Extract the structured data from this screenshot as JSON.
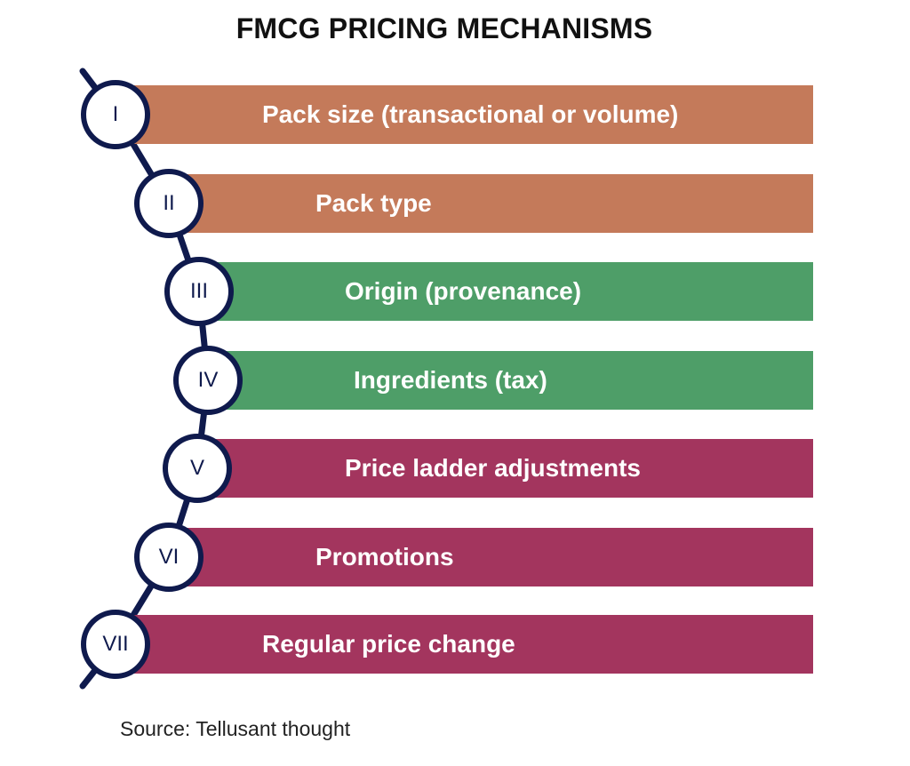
{
  "title": "FMCG PRICING MECHANISMS",
  "source": "Source: Tellusant thought",
  "colors": {
    "orange": "#C47A5A",
    "green": "#4E9E68",
    "crimson": "#A3355E",
    "spine": "#0F1A4D"
  },
  "items": [
    {
      "numeral": "I",
      "label": "Pack size (transactional or volume)",
      "color_key": "orange"
    },
    {
      "numeral": "II",
      "label": "Pack type",
      "color_key": "orange"
    },
    {
      "numeral": "III",
      "label": "Origin (provenance)",
      "color_key": "green"
    },
    {
      "numeral": "IV",
      "label": "Ingredients (tax)",
      "color_key": "green"
    },
    {
      "numeral": "V",
      "label": "Price ladder adjustments",
      "color_key": "crimson"
    },
    {
      "numeral": "VI",
      "label": "Promotions",
      "color_key": "crimson"
    },
    {
      "numeral": "VII",
      "label": "Regular price change",
      "color_key": "crimson"
    }
  ]
}
